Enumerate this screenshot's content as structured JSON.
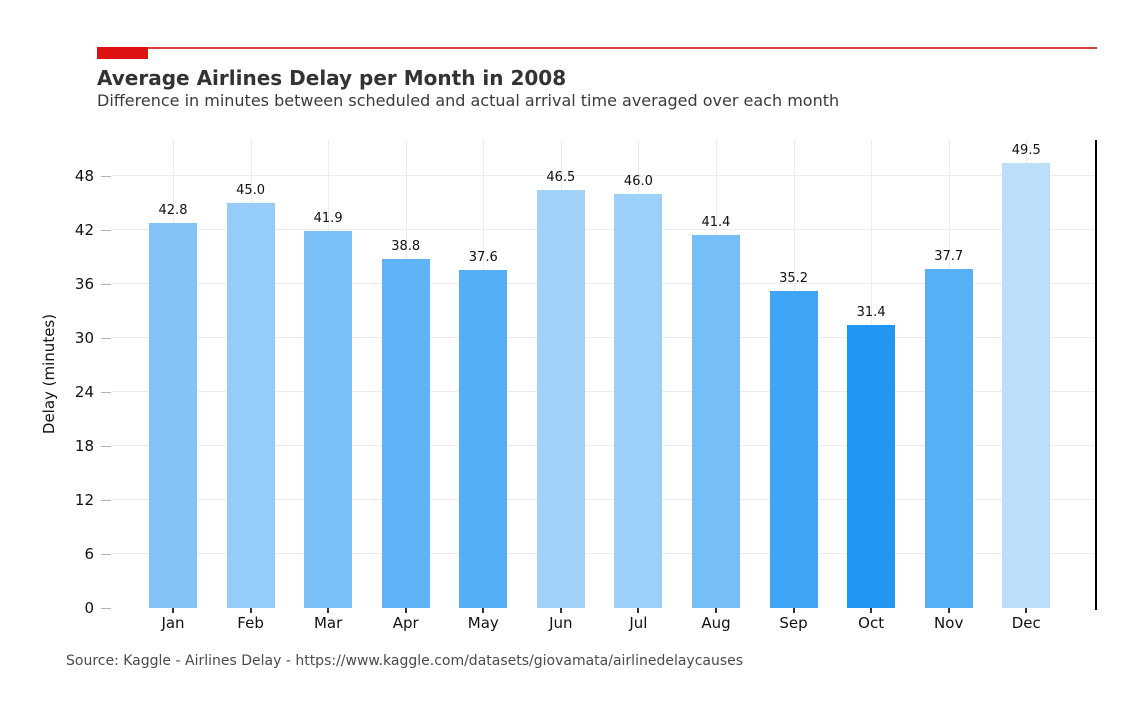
{
  "header": {
    "accent_block_color": "#dd1212",
    "accent_line_color": "#e04040"
  },
  "source_note": "Source: Kaggle - Airlines Delay - https://www.kaggle.com/datasets/giovamata/airlinedelaycauses",
  "chart_data": {
    "type": "bar",
    "title": "Average Airlines Delay per Month in 2008",
    "subtitle": "Difference in minutes between scheduled and actual arrival time averaged over each month",
    "xlabel": "",
    "ylabel": "Delay (minutes)",
    "categories": [
      "Jan",
      "Feb",
      "Mar",
      "Apr",
      "May",
      "Jun",
      "Jul",
      "Aug",
      "Sep",
      "Oct",
      "Nov",
      "Dec"
    ],
    "values": [
      42.8,
      45.0,
      41.9,
      38.8,
      37.6,
      46.5,
      46.0,
      41.4,
      35.2,
      31.4,
      37.7,
      49.5
    ],
    "value_labels": [
      "42.8",
      "45.0",
      "41.9",
      "38.8",
      "37.6",
      "46.5",
      "46.0",
      "41.4",
      "35.2",
      "31.4",
      "37.7",
      "49.5"
    ],
    "bar_colors": [
      "#82c3f8",
      "#95ccf9",
      "#7ac0f8",
      "#60b3f6",
      "#56aff6",
      "#a1d2fa",
      "#9dd0f9",
      "#76bef7",
      "#41a5f5",
      "#2196f3",
      "#57aff6",
      "#bbdefb"
    ],
    "color_rule": "bar shade interpolates from #2196f3 at lowest value to #bbdefb at highest value",
    "yticks": [
      0,
      6,
      12,
      18,
      24,
      30,
      36,
      42,
      48
    ],
    "ylim": [
      0,
      52
    ],
    "grid": true,
    "gridline_color": "#ececec",
    "legend": false,
    "annotations": "numeric value printed above each bar; solid black spine on right edge of plot"
  }
}
